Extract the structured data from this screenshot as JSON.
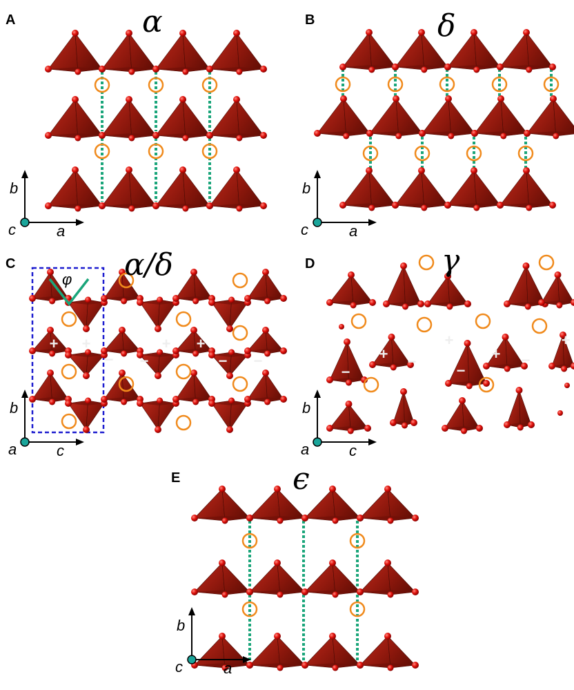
{
  "panels": [
    {
      "label": "A",
      "title": "α",
      "axis_labels": [
        "b",
        "c",
        "a"
      ]
    },
    {
      "label": "B",
      "title": "δ",
      "axis_labels": [
        "b",
        "c",
        "a"
      ]
    },
    {
      "label": "C",
      "title": "α/δ",
      "axis_labels": [
        "b",
        "a",
        "c"
      ],
      "angle": "φ",
      "signs": [
        "+",
        "+",
        "+",
        "+",
        "−",
        "−",
        "−",
        "−"
      ]
    },
    {
      "label": "D",
      "title": "γ",
      "axis_labels": [
        "b",
        "a",
        "c"
      ],
      "signs": [
        "+",
        "+",
        "+",
        "+",
        "−",
        "−",
        "−",
        "−"
      ]
    },
    {
      "label": "E",
      "title": "ϵ",
      "axis_labels": [
        "b",
        "c",
        "a"
      ]
    }
  ]
}
